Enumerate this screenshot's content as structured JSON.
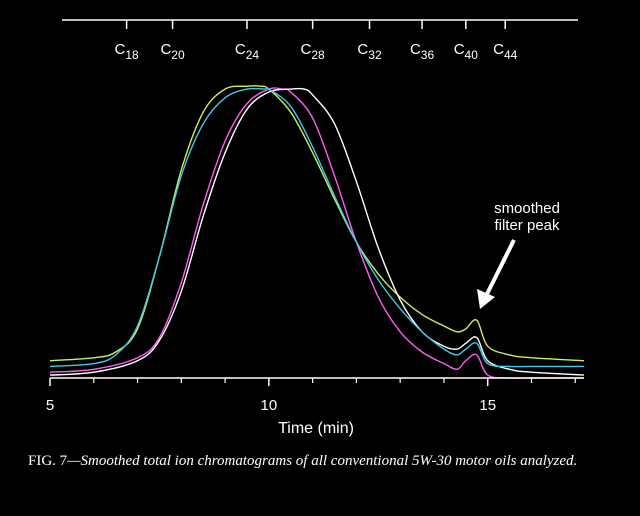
{
  "chart_data": {
    "type": "line",
    "xlabel": "Time (min)",
    "xlim": [
      5,
      17.2
    ],
    "x_ticks": [
      5,
      10,
      15
    ],
    "ylim": [
      0,
      1.08
    ],
    "top_axis_markers": [
      {
        "base": "C",
        "sub": "18",
        "x": 6.75
      },
      {
        "base": "C",
        "sub": "20",
        "x": 7.8
      },
      {
        "base": "C",
        "sub": "24",
        "x": 9.5
      },
      {
        "base": "C",
        "sub": "28",
        "x": 11.0
      },
      {
        "base": "C",
        "sub": "32",
        "x": 12.3
      },
      {
        "base": "C",
        "sub": "36",
        "x": 13.5
      },
      {
        "base": "C",
        "sub": "40",
        "x": 14.5
      },
      {
        "base": "C",
        "sub": "44",
        "x": 15.4
      }
    ],
    "annotation": {
      "lines": [
        "smoothed",
        "filter peak"
      ],
      "points_to": {
        "x": 14.75,
        "y": 0.2
      }
    },
    "series": [
      {
        "color": "#c8f25a",
        "x": [
          5,
          6,
          6.5,
          7,
          7.5,
          8,
          8.5,
          9,
          9.5,
          9.8,
          10,
          10.5,
          11,
          11.5,
          12,
          12.5,
          13,
          13.5,
          14,
          14.3,
          14.5,
          14.75,
          15,
          15.5,
          16,
          17.2
        ],
        "y": [
          0.06,
          0.07,
          0.09,
          0.17,
          0.42,
          0.72,
          0.92,
          1.0,
          1.01,
          1.01,
          1.0,
          0.92,
          0.78,
          0.62,
          0.47,
          0.36,
          0.28,
          0.22,
          0.18,
          0.16,
          0.17,
          0.2,
          0.11,
          0.08,
          0.07,
          0.06
        ]
      },
      {
        "color": "#ff5cf0",
        "x": [
          5,
          6,
          7,
          7.5,
          8,
          8.5,
          9,
          9.5,
          10,
          10.3,
          10.5,
          11,
          11.5,
          12,
          12.5,
          13,
          13.5,
          14,
          14.3,
          14.5,
          14.75,
          15,
          15.5,
          16,
          17.2
        ],
        "y": [
          0.02,
          0.03,
          0.07,
          0.14,
          0.33,
          0.6,
          0.82,
          0.95,
          1.0,
          1.0,
          0.99,
          0.9,
          0.7,
          0.47,
          0.28,
          0.16,
          0.09,
          0.05,
          0.03,
          0.06,
          0.08,
          0.01,
          0.0,
          0.0,
          0.0
        ]
      },
      {
        "color": "#ffffff",
        "x": [
          5,
          6,
          7,
          7.5,
          8,
          8.5,
          9,
          9.5,
          10,
          10.5,
          10.8,
          11,
          11.5,
          12,
          12.5,
          13,
          13.5,
          14,
          14.3,
          14.5,
          14.75,
          15,
          15.5,
          16,
          17.2
        ],
        "y": [
          0.01,
          0.02,
          0.06,
          0.13,
          0.3,
          0.56,
          0.78,
          0.93,
          0.99,
          1.0,
          1.0,
          0.98,
          0.88,
          0.68,
          0.45,
          0.27,
          0.16,
          0.11,
          0.1,
          0.12,
          0.14,
          0.06,
          0.03,
          0.02,
          0.01
        ]
      },
      {
        "color": "#3ec9e8",
        "x": [
          5,
          6,
          6.5,
          7,
          7.5,
          8,
          8.5,
          9,
          9.5,
          9.9,
          10,
          10.5,
          11,
          11.5,
          12,
          12.5,
          13,
          13.5,
          14,
          14.3,
          14.5,
          14.75,
          15,
          15.5,
          16,
          17.2
        ],
        "y": [
          0.04,
          0.05,
          0.08,
          0.18,
          0.42,
          0.7,
          0.88,
          0.97,
          1.0,
          1.0,
          1.0,
          0.94,
          0.8,
          0.63,
          0.47,
          0.34,
          0.24,
          0.16,
          0.1,
          0.08,
          0.1,
          0.12,
          0.05,
          0.04,
          0.04,
          0.04
        ]
      }
    ]
  },
  "caption": {
    "label": "FIG. 7",
    "text": "—Smoothed total ion chromatograms of all conventional 5W-30 motor oils analyzed."
  }
}
